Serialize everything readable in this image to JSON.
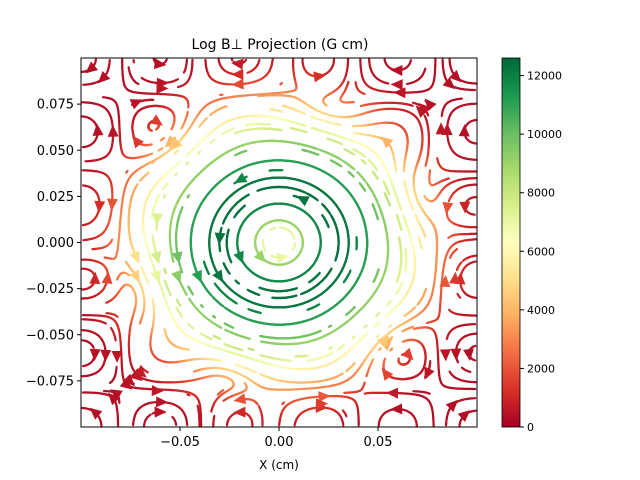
{
  "chart_data": {
    "type": "streamplot",
    "title": "Log  B⊥ Projection (G cm)",
    "xlabel": "X (cm)",
    "ylabel": "",
    "xlim": [
      -0.1,
      0.1
    ],
    "ylim": [
      -0.1,
      0.1
    ],
    "x_ticks": [
      -0.05,
      0.0,
      0.05
    ],
    "x_tick_labels": [
      "−0.05",
      "0.00",
      "0.05"
    ],
    "y_ticks": [
      -0.075,
      -0.05,
      -0.025,
      0.0,
      0.025,
      0.05,
      0.075
    ],
    "y_tick_labels": [
      "−0.075",
      "−0.050",
      "−0.025",
      "0.000",
      "0.025",
      "0.050",
      "0.075"
    ],
    "colorbar": {
      "colormap": "RdYlGn",
      "range": [
        0,
        12600
      ],
      "ticks": [
        0,
        2000,
        4000,
        6000,
        8000,
        10000,
        12000
      ],
      "tick_labels": [
        "0",
        "2000",
        "4000",
        "6000",
        "8000",
        "10000",
        "12000"
      ]
    },
    "field": {
      "description_of_rendering": "streamlines circulating around origin, color = projected field magnitude",
      "circulation": "counterclockwise"
    }
  }
}
